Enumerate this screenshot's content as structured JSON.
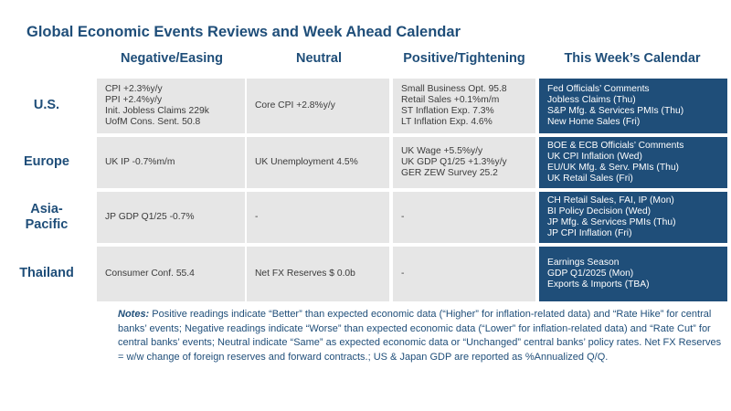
{
  "title": "Global Economic Events Reviews and Week Ahead Calendar",
  "columns": [
    "Negative/Easing",
    "Neutral",
    "Positive/Tightening",
    "This Week’s Calendar"
  ],
  "rows": [
    {
      "label": "U.S.",
      "negative": [
        "CPI +2.3%y/y",
        "PPI +2.4%y/y",
        "Init. Jobless Claims 229k",
        "UofM Cons. Sent. 50.8"
      ],
      "neutral": [
        "Core CPI +2.8%y/y"
      ],
      "positive": [
        "Small Business Opt. 95.8",
        "Retail Sales +0.1%m/m",
        "ST Inflation Exp. 7.3%",
        "LT Inflation Exp. 4.6%"
      ],
      "calendar": [
        "Fed Officials’ Comments",
        "Jobless Claims (Thu)",
        "S&P Mfg. & Services PMIs (Thu)",
        "New Home Sales (Fri)"
      ]
    },
    {
      "label": "Europe",
      "negative": [
        "UK IP -0.7%m/m"
      ],
      "neutral": [
        "UK Unemployment 4.5%"
      ],
      "positive": [
        "UK Wage +5.5%y/y",
        "UK GDP Q1/25 +1.3%y/y",
        "GER ZEW Survey 25.2"
      ],
      "calendar": [
        "BOE & ECB Officials’ Comments",
        "UK CPI Inflation (Wed)",
        "EU/UK Mfg. & Serv. PMIs (Thu)",
        "UK Retail Sales (Fri)"
      ]
    },
    {
      "label_line1": "Asia-",
      "label_line2": "Pacific",
      "negative": [
        "JP GDP Q1/25 -0.7%"
      ],
      "neutral": [
        "-"
      ],
      "positive": [
        "-"
      ],
      "calendar": [
        "CH Retail Sales, FAI, IP (Mon)",
        "BI Policy Decision (Wed)",
        "JP Mfg. & Services PMIs (Thu)",
        "JP CPI Inflation (Fri)"
      ]
    },
    {
      "label": "Thailand",
      "negative": [
        "Consumer Conf. 55.4"
      ],
      "neutral": [
        "Net FX Reserves $ 0.0b"
      ],
      "positive": [
        "-"
      ],
      "calendar": [
        "Earnings Season",
        "GDP Q1/2025 (Mon)",
        "Exports & Imports (TBA)"
      ]
    }
  ],
  "notes": {
    "label": "Notes:",
    "text": " Positive readings indicate “Better” than expected economic data (“Higher” for inflation-related data) and “Rate Hike” for central banks’ events; Negative readings indicate “Worse” than expected economic data (“Lower” for inflation-related data) and “Rate Cut” for central banks’ events; Neutral indicate “Same” as expected economic data or “Unchanged” central banks’ policy rates. Net FX Reserves = w/w change of foreign reserves and forward contracts.; US & Japan GDP are reported as %Annualized Q/Q."
  },
  "colors": {
    "accent": "#1f4e79",
    "cell_bg": "#e6e6e6",
    "calendar_text": "#ffffff"
  }
}
